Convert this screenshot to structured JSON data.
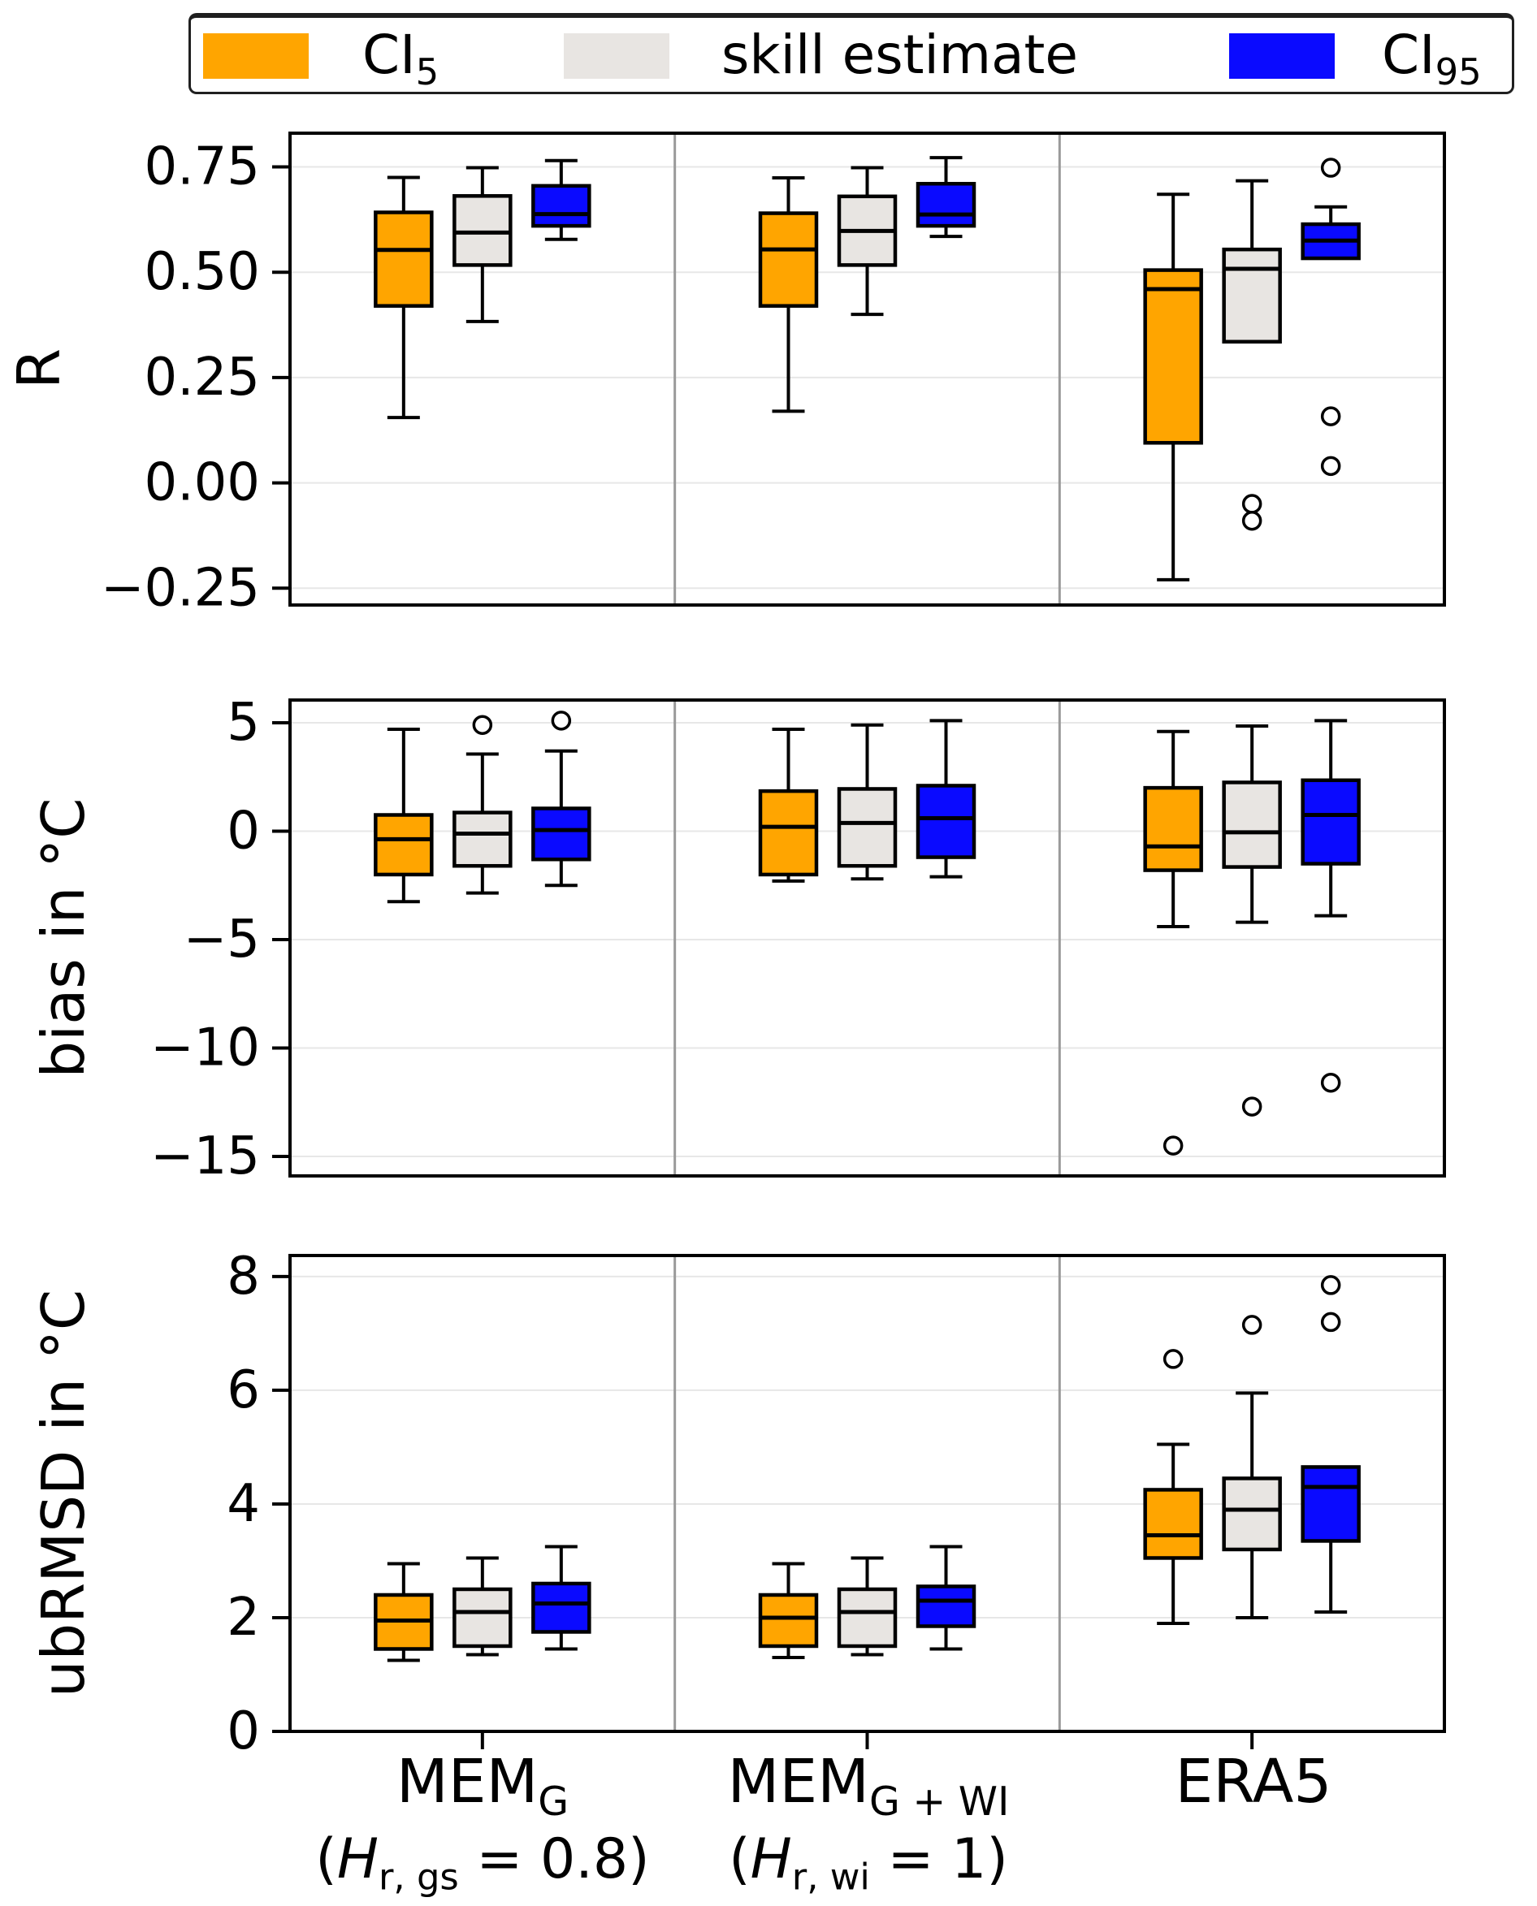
{
  "legend": {
    "items": [
      {
        "name": "ci5",
        "label_main": "CI",
        "label_sub": "5",
        "color": "#FFA500"
      },
      {
        "name": "skill",
        "label_main": "skill estimate",
        "label_sub": "",
        "color": "#E8E5E2"
      },
      {
        "name": "ci95",
        "label_main": "CI",
        "label_sub": "95",
        "color": "#0A0AFF"
      }
    ]
  },
  "xaxis": {
    "groups": [
      {
        "line1_main": "MEM",
        "line1_sub": "G",
        "line2_pre": "(",
        "line2_var": "H",
        "line2_sub": "r, gs",
        "line2_post": " = 0.8)"
      },
      {
        "line1_main": "MEM",
        "line1_sub": "G + WI",
        "line2_pre": "(",
        "line2_var": "H",
        "line2_sub": "r, wi",
        "line2_post": " = 1)"
      },
      {
        "line1_main": "ERA5",
        "line1_sub": "",
        "line2_pre": "",
        "line2_var": "",
        "line2_sub": "",
        "line2_post": ""
      }
    ]
  },
  "chart_data": {
    "type": "boxplot",
    "title": "",
    "legend_position": "top",
    "grid": true,
    "series": [
      {
        "name": "CI5",
        "color": "#FFA500"
      },
      {
        "name": "skill estimate",
        "color": "#E8E5E2"
      },
      {
        "name": "CI95",
        "color": "#0A0AFF"
      }
    ],
    "group_labels": [
      "MEM_G (H_r,gs = 0.8)",
      "MEM_G+WI (H_r,wi = 1)",
      "ERA5"
    ],
    "panels": [
      {
        "ylabel": "R",
        "ylim": [
          -0.29,
          0.83
        ],
        "yticks": [
          {
            "value": 0.75,
            "label": "0.75"
          },
          {
            "value": 0.5,
            "label": "0.50"
          },
          {
            "value": 0.25,
            "label": "0.25"
          },
          {
            "value": 0.0,
            "label": "0.00"
          },
          {
            "value": -0.25,
            "label": "−0.25"
          }
        ],
        "boxes": [
          {
            "group": 0,
            "series": 0,
            "lo": 0.155,
            "q1": 0.42,
            "med": 0.553,
            "q3": 0.642,
            "hi": 0.725,
            "fliers": []
          },
          {
            "group": 0,
            "series": 1,
            "lo": 0.383,
            "q1": 0.517,
            "med": 0.594,
            "q3": 0.681,
            "hi": 0.748,
            "fliers": []
          },
          {
            "group": 0,
            "series": 2,
            "lo": 0.578,
            "q1": 0.61,
            "med": 0.638,
            "q3": 0.705,
            "hi": 0.765,
            "fliers": []
          },
          {
            "group": 1,
            "series": 0,
            "lo": 0.17,
            "q1": 0.42,
            "med": 0.554,
            "q3": 0.64,
            "hi": 0.724,
            "fliers": []
          },
          {
            "group": 1,
            "series": 1,
            "lo": 0.4,
            "q1": 0.517,
            "med": 0.598,
            "q3": 0.68,
            "hi": 0.748,
            "fliers": []
          },
          {
            "group": 1,
            "series": 2,
            "lo": 0.585,
            "q1": 0.61,
            "med": 0.637,
            "q3": 0.71,
            "hi": 0.772,
            "fliers": []
          },
          {
            "group": 2,
            "series": 0,
            "lo": -0.23,
            "q1": 0.095,
            "med": 0.46,
            "q3": 0.505,
            "hi": 0.685,
            "fliers": []
          },
          {
            "group": 2,
            "series": 1,
            "lo": 0.335,
            "q1": 0.335,
            "med": 0.508,
            "q3": 0.554,
            "hi": 0.717,
            "fliers": [
              -0.05,
              -0.09
            ]
          },
          {
            "group": 2,
            "series": 2,
            "lo": 0.533,
            "q1": 0.533,
            "med": 0.575,
            "q3": 0.614,
            "hi": 0.655,
            "fliers": [
              0.748,
              0.158,
              0.04
            ]
          }
        ]
      },
      {
        "ylabel": "bias in °C",
        "ylim": [
          -15.9,
          6.05
        ],
        "yticks": [
          {
            "value": 5,
            "label": "5"
          },
          {
            "value": 0,
            "label": "0"
          },
          {
            "value": -5,
            "label": "−5"
          },
          {
            "value": -10,
            "label": "−10"
          },
          {
            "value": -15,
            "label": "−15"
          }
        ],
        "boxes": [
          {
            "group": 0,
            "series": 0,
            "lo": -3.25,
            "q1": -2.0,
            "med": -0.37,
            "q3": 0.75,
            "hi": 4.7,
            "fliers": []
          },
          {
            "group": 0,
            "series": 1,
            "lo": -2.85,
            "q1": -1.6,
            "med": -0.11,
            "q3": 0.86,
            "hi": 3.56,
            "fliers": [
              4.9
            ]
          },
          {
            "group": 0,
            "series": 2,
            "lo": -2.5,
            "q1": -1.3,
            "med": 0.05,
            "q3": 1.05,
            "hi": 3.7,
            "fliers": [
              5.1
            ]
          },
          {
            "group": 1,
            "series": 0,
            "lo": -2.3,
            "q1": -2.0,
            "med": 0.2,
            "q3": 1.85,
            "hi": 4.7,
            "fliers": []
          },
          {
            "group": 1,
            "series": 1,
            "lo": -2.2,
            "q1": -1.6,
            "med": 0.38,
            "q3": 1.95,
            "hi": 4.9,
            "fliers": []
          },
          {
            "group": 1,
            "series": 2,
            "lo": -2.1,
            "q1": -1.2,
            "med": 0.6,
            "q3": 2.1,
            "hi": 5.1,
            "fliers": []
          },
          {
            "group": 2,
            "series": 0,
            "lo": -4.4,
            "q1": -1.8,
            "med": -0.7,
            "q3": 2.0,
            "hi": 4.6,
            "fliers": [
              -14.5
            ]
          },
          {
            "group": 2,
            "series": 1,
            "lo": -4.2,
            "q1": -1.65,
            "med": -0.05,
            "q3": 2.25,
            "hi": 4.85,
            "fliers": [
              -12.7
            ]
          },
          {
            "group": 2,
            "series": 2,
            "lo": -3.9,
            "q1": -1.5,
            "med": 0.75,
            "q3": 2.35,
            "hi": 5.1,
            "fliers": [
              -11.6
            ]
          }
        ]
      },
      {
        "ylabel": "ubRMSD in °C",
        "ylim": [
          0,
          8.37
        ],
        "yticks": [
          {
            "value": 8,
            "label": "8"
          },
          {
            "value": 6,
            "label": "6"
          },
          {
            "value": 4,
            "label": "4"
          },
          {
            "value": 2,
            "label": "2"
          },
          {
            "value": 0,
            "label": "0"
          }
        ],
        "boxes": [
          {
            "group": 0,
            "series": 0,
            "lo": 1.25,
            "q1": 1.45,
            "med": 1.95,
            "q3": 2.4,
            "hi": 2.95,
            "fliers": []
          },
          {
            "group": 0,
            "series": 1,
            "lo": 1.35,
            "q1": 1.5,
            "med": 2.1,
            "q3": 2.5,
            "hi": 3.05,
            "fliers": []
          },
          {
            "group": 0,
            "series": 2,
            "lo": 1.45,
            "q1": 1.75,
            "med": 2.25,
            "q3": 2.6,
            "hi": 3.25,
            "fliers": []
          },
          {
            "group": 1,
            "series": 0,
            "lo": 1.3,
            "q1": 1.5,
            "med": 2.0,
            "q3": 2.4,
            "hi": 2.95,
            "fliers": []
          },
          {
            "group": 1,
            "series": 1,
            "lo": 1.35,
            "q1": 1.5,
            "med": 2.1,
            "q3": 2.5,
            "hi": 3.05,
            "fliers": []
          },
          {
            "group": 1,
            "series": 2,
            "lo": 1.45,
            "q1": 1.85,
            "med": 2.3,
            "q3": 2.55,
            "hi": 3.25,
            "fliers": []
          },
          {
            "group": 2,
            "series": 0,
            "lo": 1.9,
            "q1": 3.05,
            "med": 3.45,
            "q3": 4.25,
            "hi": 5.05,
            "fliers": [
              6.55
            ]
          },
          {
            "group": 2,
            "series": 1,
            "lo": 2.0,
            "q1": 3.2,
            "med": 3.9,
            "q3": 4.45,
            "hi": 5.95,
            "fliers": [
              7.15
            ]
          },
          {
            "group": 2,
            "series": 2,
            "lo": 2.1,
            "q1": 3.35,
            "med": 4.3,
            "q3": 4.65,
            "hi": 4.65,
            "fliers": [
              7.85,
              7.2
            ]
          }
        ]
      }
    ]
  }
}
